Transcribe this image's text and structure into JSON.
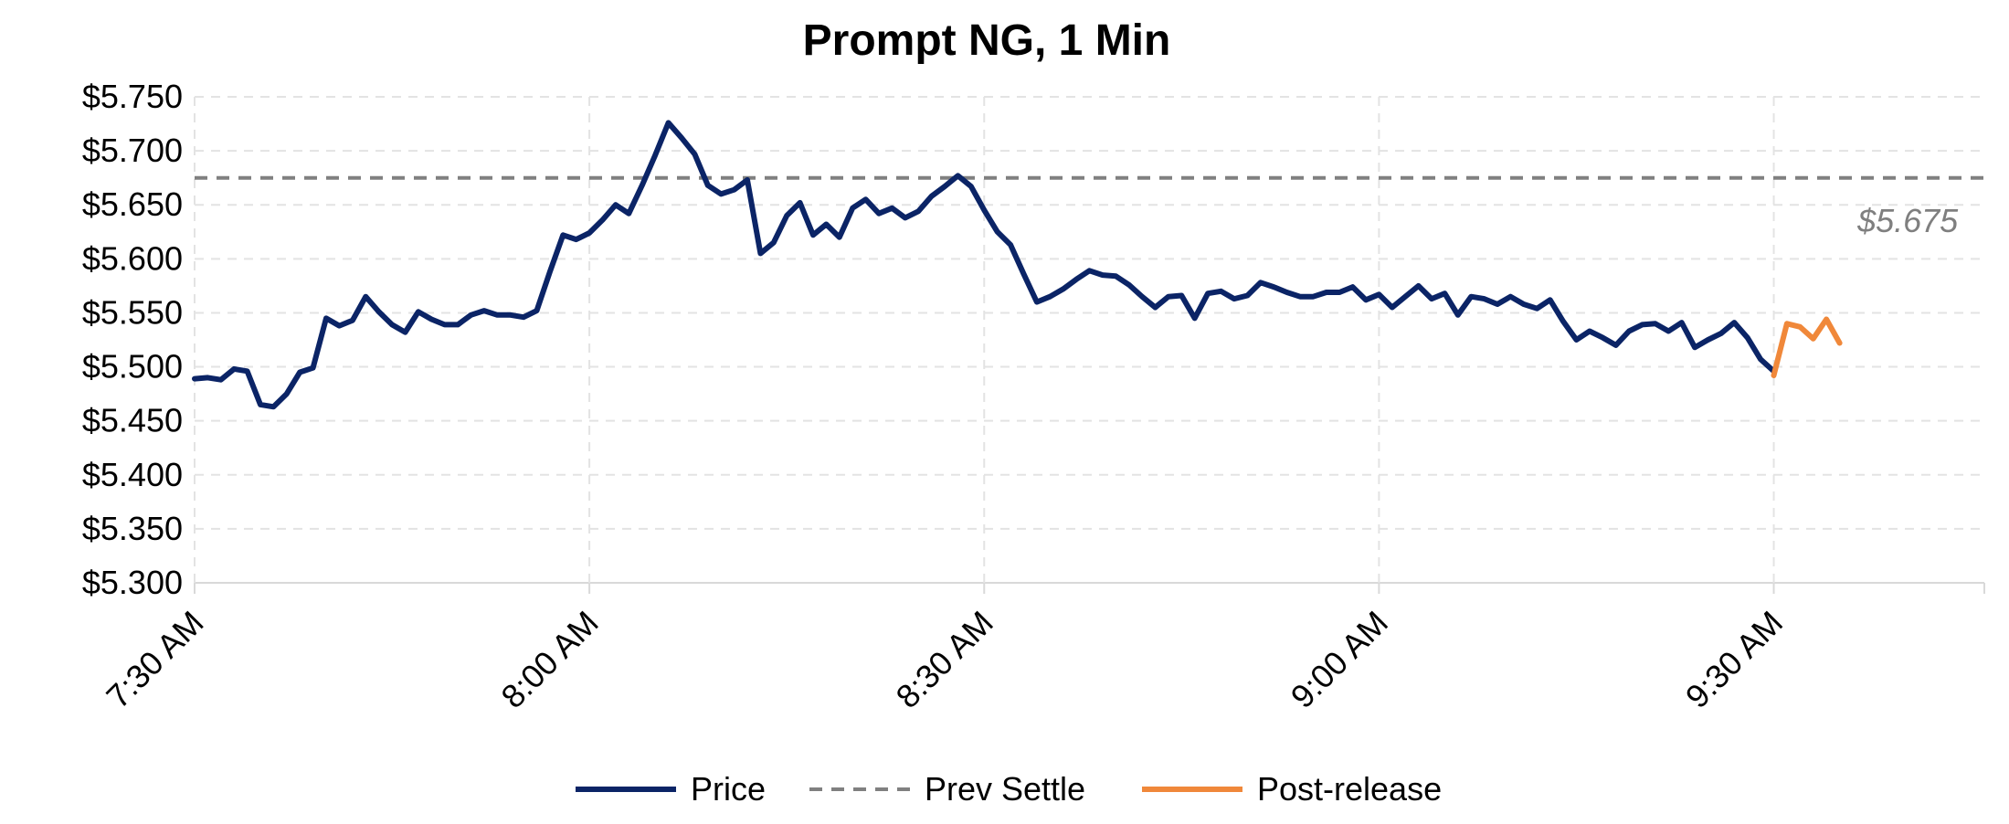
{
  "chart_data": {
    "type": "line",
    "title": "Prompt NG, 1 Min",
    "xlabel": "",
    "ylabel": "",
    "ylim": [
      5.3,
      5.75
    ],
    "y_ticks": [
      5.3,
      5.35,
      5.4,
      5.45,
      5.5,
      5.55,
      5.6,
      5.65,
      5.7,
      5.75
    ],
    "y_tick_labels": [
      "$5.300",
      "$5.350",
      "$5.400",
      "$5.450",
      "$5.500",
      "$5.550",
      "$5.600",
      "$5.650",
      "$5.700",
      "$5.750"
    ],
    "x_ticks": [
      "7:30 AM",
      "8:00 AM",
      "8:30 AM",
      "9:00 AM",
      "9:30 AM"
    ],
    "x_tick_minutes": [
      0,
      30,
      60,
      90,
      120
    ],
    "x_range_minutes": [
      0,
      136
    ],
    "grid": true,
    "legend_position": "bottom",
    "series": [
      {
        "name": "Price",
        "color": "#0b2466",
        "style": "solid",
        "x": [
          0,
          1,
          2,
          3,
          4,
          5,
          6,
          7,
          8,
          9,
          10,
          11,
          12,
          13,
          14,
          15,
          16,
          17,
          18,
          19,
          20,
          21,
          22,
          23,
          24,
          25,
          26,
          27,
          28,
          29,
          30,
          31,
          32,
          33,
          34,
          35,
          36,
          37,
          38,
          39,
          40,
          41,
          42,
          43,
          44,
          45,
          46,
          47,
          48,
          49,
          50,
          51,
          52,
          53,
          54,
          55,
          56,
          57,
          58,
          59,
          60,
          61,
          62,
          63,
          64,
          65,
          66,
          67,
          68,
          69,
          70,
          71,
          72,
          73,
          74,
          75,
          76,
          77,
          78,
          79,
          80,
          81,
          82,
          83,
          84,
          85,
          86,
          87,
          88,
          89,
          90,
          91,
          92,
          93,
          94,
          95,
          96,
          97,
          98,
          99,
          100,
          101,
          102,
          103,
          104,
          105,
          106,
          107,
          108,
          109,
          110,
          111,
          112,
          113,
          114,
          115,
          116,
          117,
          118,
          119,
          120
        ],
        "values": [
          5.489,
          5.49,
          5.488,
          5.498,
          5.496,
          5.465,
          5.463,
          5.475,
          5.495,
          5.499,
          5.545,
          5.538,
          5.543,
          5.565,
          5.551,
          5.539,
          5.532,
          5.551,
          5.544,
          5.539,
          5.539,
          5.548,
          5.552,
          5.548,
          5.548,
          5.546,
          5.552,
          5.588,
          5.622,
          5.618,
          5.624,
          5.636,
          5.65,
          5.642,
          5.668,
          5.696,
          5.726,
          5.712,
          5.697,
          5.668,
          5.66,
          5.664,
          5.673,
          5.605,
          5.615,
          5.64,
          5.652,
          5.622,
          5.632,
          5.62,
          5.647,
          5.655,
          5.642,
          5.647,
          5.638,
          5.644,
          5.658,
          5.667,
          5.677,
          5.667,
          5.645,
          5.625,
          5.613,
          5.586,
          5.56,
          5.565,
          5.572,
          5.581,
          5.589,
          5.585,
          5.584,
          5.576,
          5.565,
          5.555,
          5.565,
          5.566,
          5.545,
          5.568,
          5.57,
          5.563,
          5.566,
          5.578,
          5.574,
          5.569,
          5.565,
          5.565,
          5.569,
          5.569,
          5.574,
          5.562,
          5.567,
          5.555,
          5.565,
          5.575,
          5.563,
          5.568,
          5.548,
          5.565,
          5.563,
          5.558,
          5.565,
          5.558,
          5.554,
          5.562,
          5.542,
          5.525,
          5.533,
          5.527,
          5.52,
          5.533,
          5.539,
          5.54,
          5.533,
          5.541,
          5.518,
          5.525,
          5.531,
          5.541,
          5.527,
          5.507,
          5.496
        ]
      },
      {
        "name": "Prev Settle",
        "color": "#808080",
        "style": "dashed",
        "x": [
          0,
          136
        ],
        "values": [
          5.675,
          5.675
        ]
      },
      {
        "name": "Post-release",
        "color": "#f0883a",
        "style": "solid",
        "x": [
          120,
          121,
          122,
          123,
          124,
          125
        ],
        "values": [
          5.492,
          5.54,
          5.537,
          5.526,
          5.544,
          5.522
        ]
      }
    ],
    "annotations": [
      {
        "text": "$5.675",
        "x": 134,
        "y": 5.635
      }
    ]
  }
}
